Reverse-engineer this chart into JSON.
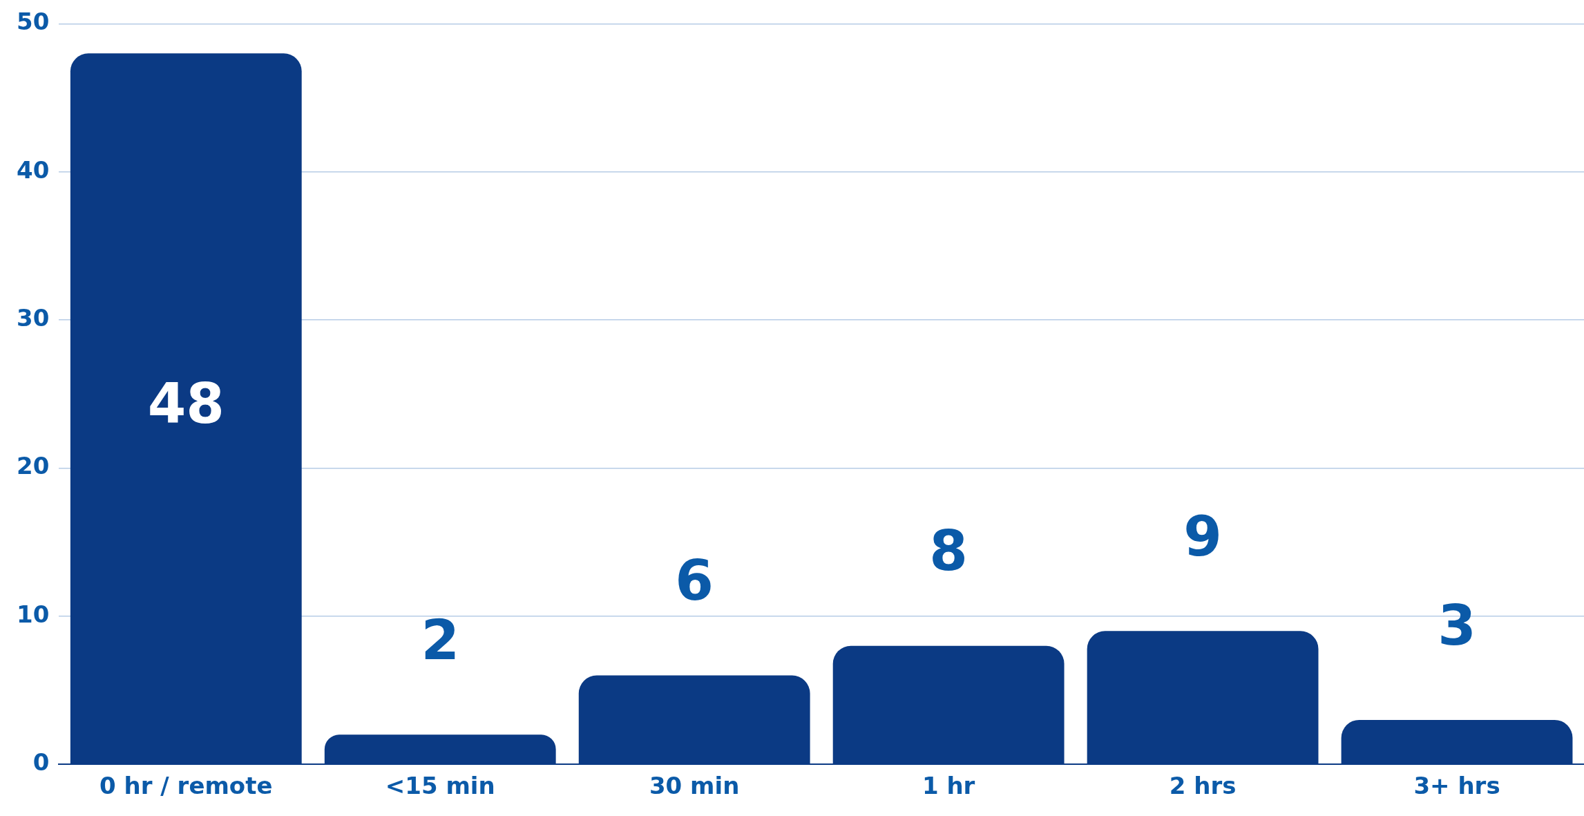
{
  "chart_data": {
    "type": "bar",
    "categories": [
      "0 hr / remote",
      "<15 min",
      "30 min",
      "1 hr",
      "2 hrs",
      "3+ hrs"
    ],
    "values": [
      48,
      2,
      6,
      8,
      9,
      3
    ],
    "color": "#0b3a84",
    "ylim": [
      0,
      50
    ],
    "yticks": [
      0,
      10,
      20,
      30,
      40,
      50
    ],
    "grid": "y",
    "data_labels": true
  }
}
